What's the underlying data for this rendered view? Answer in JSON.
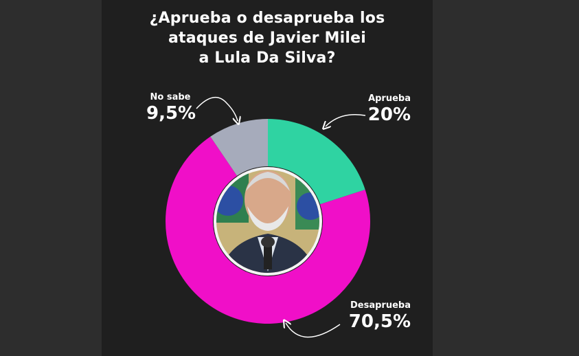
{
  "title_lines": [
    "¿Aprueba o desaprueba los",
    "ataques de Javier Milei",
    "a Lula Da Silva?"
  ],
  "colors": {
    "aprueba": "#2fd3a2",
    "desaprueba": "#f00fc8",
    "no_sabe": "#a6abbb",
    "panel": "#1f1f1f",
    "background": "#2b2b2b"
  },
  "chart_data": {
    "type": "pie",
    "donut": true,
    "title": "¿Aprueba o desaprueba los ataques de Javier Milei a Lula Da Silva?",
    "slices": [
      {
        "label": "Aprueba",
        "value": 20,
        "value_label": "20%",
        "color": "#2fd3a2"
      },
      {
        "label": "Desaprueba",
        "value": 70.5,
        "value_label": "70,5%",
        "color": "#f00fc8"
      },
      {
        "label": "No sabe",
        "value": 9.5,
        "value_label": "9,5%",
        "color": "#a6abbb"
      }
    ],
    "center_image": "photo-of-lula-da-silva"
  }
}
